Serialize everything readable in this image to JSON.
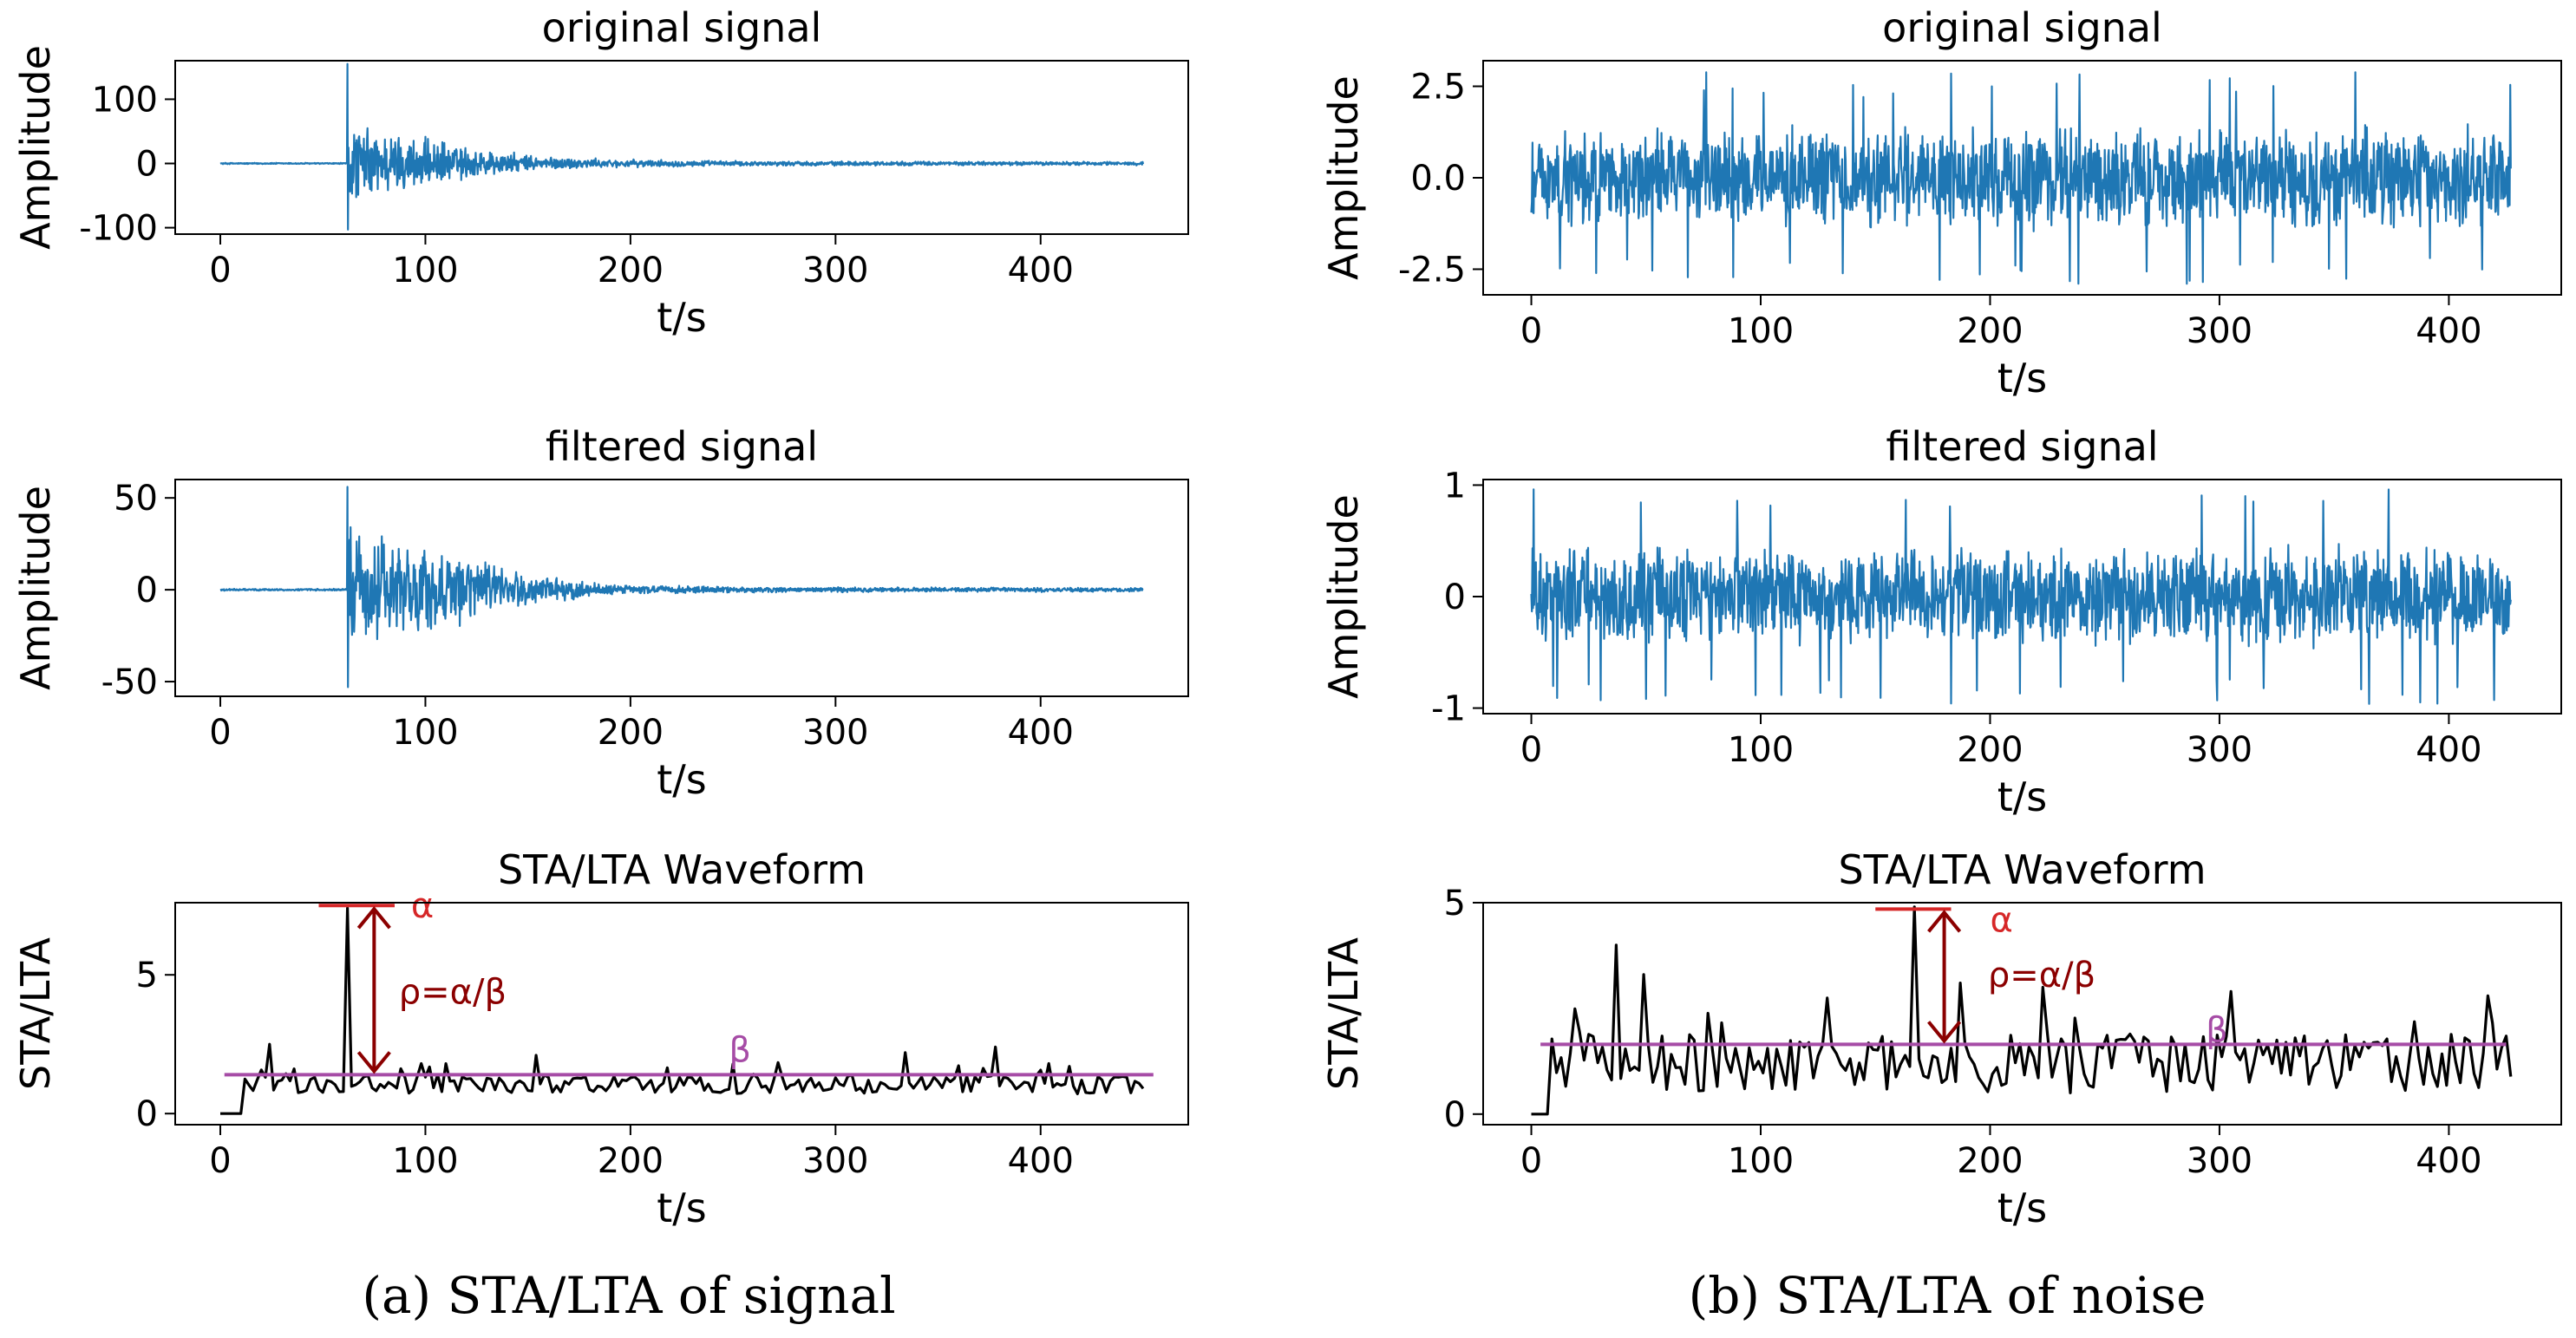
{
  "chart_data": [
    {
      "type": "line",
      "id": "a1",
      "signal": "event",
      "title": "original signal",
      "xlabel": "t/s",
      "ylabel": "Amplitude",
      "xlim": [
        -22,
        472
      ],
      "ylim": [
        -110,
        160
      ],
      "xticks": [
        0,
        100,
        200,
        300,
        400
      ],
      "yticks": [
        -100,
        0,
        100
      ],
      "x_end": 450,
      "onset": 62,
      "peak_pos": 155,
      "peak_neg": -103,
      "envelope": [
        {
          "x": 62,
          "v": 70
        },
        {
          "x": 90,
          "v": 50
        },
        {
          "x": 120,
          "v": 30
        },
        {
          "x": 150,
          "v": 14
        },
        {
          "x": 190,
          "v": 7
        },
        {
          "x": 260,
          "v": 4
        },
        {
          "x": 450,
          "v": 3
        }
      ],
      "baseline_noise": 1.2,
      "color": "#1f77b4"
    },
    {
      "type": "line",
      "id": "a2",
      "signal": "event",
      "title": "filtered signal",
      "xlabel": "t/s",
      "ylabel": "Amplitude",
      "xlim": [
        -22,
        472
      ],
      "ylim": [
        -58,
        60
      ],
      "xticks": [
        0,
        100,
        200,
        300,
        400
      ],
      "yticks": [
        -50,
        0,
        50
      ],
      "x_end": 450,
      "onset": 62,
      "peak_pos": 56,
      "peak_neg": -53,
      "envelope": [
        {
          "x": 62,
          "v": 35
        },
        {
          "x": 90,
          "v": 30
        },
        {
          "x": 120,
          "v": 20
        },
        {
          "x": 150,
          "v": 9
        },
        {
          "x": 190,
          "v": 3
        },
        {
          "x": 260,
          "v": 1.6
        },
        {
          "x": 450,
          "v": 1.2
        }
      ],
      "baseline_noise": 0.6,
      "color": "#1f77b4"
    },
    {
      "type": "line",
      "id": "a3",
      "signal": "stalta",
      "title": "STA/LTA Waveform",
      "xlabel": "t/s",
      "ylabel": "STA/LTA",
      "xlim": [
        -22,
        472
      ],
      "ylim": [
        -0.4,
        7.6
      ],
      "xticks": [
        0,
        100,
        200,
        300,
        400
      ],
      "yticks": [
        0,
        5
      ],
      "x_end": 450,
      "start": 10,
      "mean": 1.05,
      "spread": 0.35,
      "spikes": [
        {
          "x": 25,
          "v": 2.5
        },
        {
          "x": 62,
          "v": 7.4
        },
        {
          "x": 110,
          "v": 1.8
        },
        {
          "x": 155,
          "v": 2.1
        },
        {
          "x": 335,
          "v": 2.2
        },
        {
          "x": 378,
          "v": 2.4
        }
      ],
      "alpha": 7.5,
      "beta": 1.4,
      "beta_x": [
        2,
        455
      ],
      "alpha_x": [
        48,
        85
      ],
      "arrow_x": 75,
      "labels": {
        "alpha": "α",
        "beta": "β",
        "rho": "ρ=α/β"
      },
      "label_pos": {
        "alpha": [
          93,
          7.5
        ],
        "rho": [
          87,
          4.4
        ],
        "beta": [
          248,
          2.3
        ]
      },
      "color": "#000000",
      "beta_color": "#a64ca6",
      "alpha_color": "#d62728",
      "arrow_color": "#8b0000"
    },
    {
      "type": "line",
      "id": "b1",
      "signal": "noise",
      "title": "original signal",
      "xlabel": "t/s",
      "ylabel": "Amplitude",
      "xlim": [
        -21,
        449
      ],
      "ylim": [
        -3.2,
        3.2
      ],
      "xticks": [
        0,
        100,
        200,
        300,
        400
      ],
      "yticks": [
        -2.5,
        0.0,
        2.5
      ],
      "x_end": 427,
      "amplitude": 1.5,
      "extreme": 2.9,
      "color": "#1f77b4"
    },
    {
      "type": "line",
      "id": "b2",
      "signal": "noise",
      "title": "filtered signal",
      "xlabel": "t/s",
      "ylabel": "Amplitude",
      "xlim": [
        -21,
        449
      ],
      "ylim": [
        -1.05,
        1.05
      ],
      "xticks": [
        0,
        100,
        200,
        300,
        400
      ],
      "yticks": [
        -1,
        0,
        1
      ],
      "x_end": 427,
      "amplitude": 0.48,
      "extreme": 0.98,
      "color": "#1f77b4"
    },
    {
      "type": "line",
      "id": "b3",
      "signal": "stalta",
      "title": "STA/LTA Waveform",
      "xlabel": "t/s",
      "ylabel": "STA/LTA",
      "xlim": [
        -21,
        449
      ],
      "ylim": [
        -0.25,
        5.0
      ],
      "xticks": [
        0,
        100,
        200,
        300,
        400
      ],
      "yticks": [
        0,
        5
      ],
      "x_end": 427,
      "start": 7,
      "mean": 1.2,
      "spread": 0.7,
      "spikes": [
        {
          "x": 37,
          "v": 4.0
        },
        {
          "x": 50,
          "v": 3.3
        },
        {
          "x": 168,
          "v": 4.9
        },
        {
          "x": 188,
          "v": 3.1
        },
        {
          "x": 224,
          "v": 3.0
        },
        {
          "x": 305,
          "v": 2.9
        },
        {
          "x": 418,
          "v": 2.8
        }
      ],
      "alpha": 4.85,
      "beta": 1.65,
      "beta_x": [
        4,
        425
      ],
      "alpha_x": [
        150,
        183
      ],
      "arrow_x": 180,
      "labels": {
        "alpha": "α",
        "beta": "β",
        "rho": "ρ=α/β"
      },
      "label_pos": {
        "alpha": [
          200,
          4.6
        ],
        "rho": [
          199,
          3.3
        ],
        "beta": [
          294,
          2.0
        ]
      },
      "color": "#000000",
      "beta_color": "#a64ca6",
      "alpha_color": "#d62728",
      "arrow_color": "#8b0000"
    }
  ],
  "captions": {
    "a": {
      "label": "(a)",
      "text": "STA/LTA of signal"
    },
    "b": {
      "label": "(b)",
      "text": "STA/LTA of noise"
    }
  }
}
